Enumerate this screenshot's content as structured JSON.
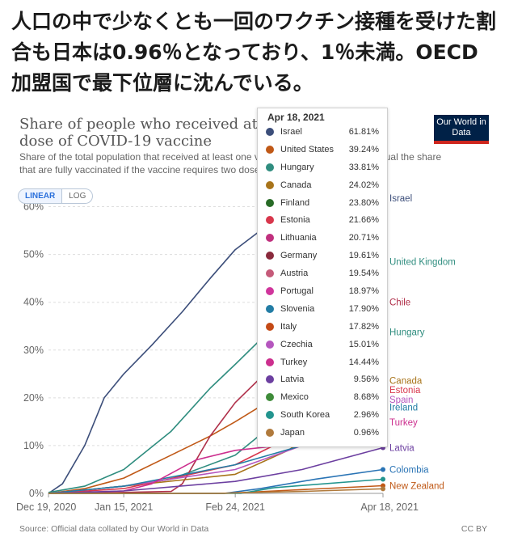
{
  "headline": "人口の中で少なくとも一回のワクチン接種を受けた割合も日本は0.96％となっており、1％未満。OECD加盟国で最下位層に沈んでいる。",
  "logo": "Our World in Data",
  "toggle": {
    "linear": "LINEAR",
    "log": "LOG"
  },
  "footer": {
    "source": "Source: Official data collated by Our World in Data",
    "license": "CC BY"
  },
  "tooltip": {
    "date": "Apr 18, 2021",
    "rows": [
      {
        "name": "Israel",
        "value": "61.81%",
        "color": "#3c4e7a"
      },
      {
        "name": "United States",
        "value": "39.24%",
        "color": "#c05917"
      },
      {
        "name": "Hungary",
        "value": "33.81%",
        "color": "#2f8d7f"
      },
      {
        "name": "Canada",
        "value": "24.02%",
        "color": "#a8741a"
      },
      {
        "name": "Finland",
        "value": "23.80%",
        "color": "#286b26"
      },
      {
        "name": "Estonia",
        "value": "21.66%",
        "color": "#d8374c"
      },
      {
        "name": "Lithuania",
        "value": "20.71%",
        "color": "#c0307e"
      },
      {
        "name": "Germany",
        "value": "19.61%",
        "color": "#8a2a3c"
      },
      {
        "name": "Austria",
        "value": "19.54%",
        "color": "#c55a79"
      },
      {
        "name": "Portugal",
        "value": "18.97%",
        "color": "#d0359c"
      },
      {
        "name": "Slovenia",
        "value": "17.90%",
        "color": "#237da5"
      },
      {
        "name": "Italy",
        "value": "17.82%",
        "color": "#c44a16"
      },
      {
        "name": "Czechia",
        "value": "15.01%",
        "color": "#b556be"
      },
      {
        "name": "Turkey",
        "value": "14.44%",
        "color": "#cc2f8e"
      },
      {
        "name": "Latvia",
        "value": "9.56%",
        "color": "#6c3fa0"
      },
      {
        "name": "Mexico",
        "value": "8.68%",
        "color": "#3f8c3a"
      },
      {
        "name": "South Korea",
        "value": "2.96%",
        "color": "#23958f"
      },
      {
        "name": "Japan",
        "value": "0.96%",
        "color": "#b07a3c"
      }
    ]
  },
  "chart_data": {
    "type": "line",
    "title": "Share of people who received at least one dose of COVID-19 vaccine",
    "subtitle": "Share of the total population that received at least one vaccine dose. This may not equal the share that are fully vaccinated if the vaccine requires two doses.",
    "y_ticks": [
      "0%",
      "10%",
      "20%",
      "30%",
      "40%",
      "50%",
      "60%"
    ],
    "x_ticks": [
      "Dec 19, 2020",
      "Jan 15, 2021",
      "Feb 24, 2021",
      "Apr 18, 2021"
    ],
    "ylim": [
      0,
      65
    ],
    "xlim": [
      "2020-12-19",
      "2021-04-18"
    ],
    "series": [
      {
        "name": "Israel",
        "color": "#3c4e7a",
        "points": [
          [
            "2020-12-19",
            0
          ],
          [
            "2020-12-24",
            2
          ],
          [
            "2021-01-01",
            10
          ],
          [
            "2021-01-08",
            20
          ],
          [
            "2021-01-15",
            25
          ],
          [
            "2021-01-25",
            31
          ],
          [
            "2021-02-05",
            38
          ],
          [
            "2021-02-15",
            45
          ],
          [
            "2021-02-24",
            51
          ],
          [
            "2021-03-05",
            55
          ],
          [
            "2021-03-15",
            58
          ],
          [
            "2021-03-25",
            60
          ],
          [
            "2021-04-05",
            61.2
          ],
          [
            "2021-04-18",
            61.81
          ]
        ]
      },
      {
        "name": "United States",
        "color": "#c05917",
        "points": [
          [
            "2020-12-19",
            0
          ],
          [
            "2021-01-01",
            1
          ],
          [
            "2021-01-15",
            3.2
          ],
          [
            "2021-02-01",
            8
          ],
          [
            "2021-02-15",
            12
          ],
          [
            "2021-02-24",
            15
          ],
          [
            "2021-03-10",
            20
          ],
          [
            "2021-03-25",
            27
          ],
          [
            "2021-04-05",
            33
          ],
          [
            "2021-04-18",
            39.24
          ]
        ]
      },
      {
        "name": "United Kingdom",
        "color": "#2f8d7f",
        "points": [
          [
            "2020-12-19",
            0.2
          ],
          [
            "2021-01-01",
            1.5
          ],
          [
            "2021-01-15",
            5
          ],
          [
            "2021-02-01",
            13
          ],
          [
            "2021-02-15",
            22
          ],
          [
            "2021-02-24",
            27
          ],
          [
            "2021-03-10",
            35
          ],
          [
            "2021-03-25",
            43
          ],
          [
            "2021-04-05",
            46.5
          ],
          [
            "2021-04-18",
            48.5
          ]
        ]
      },
      {
        "name": "Hungary",
        "color": "#2f8d7f",
        "points": [
          [
            "2020-12-19",
            0
          ],
          [
            "2021-01-15",
            1.5
          ],
          [
            "2021-02-01",
            3
          ],
          [
            "2021-02-24",
            8
          ],
          [
            "2021-03-15",
            17
          ],
          [
            "2021-04-01",
            26
          ],
          [
            "2021-04-18",
            33.81
          ]
        ]
      },
      {
        "name": "Chile",
        "color": "#b0304a",
        "points": [
          [
            "2020-12-19",
            0
          ],
          [
            "2021-01-15",
            0.2
          ],
          [
            "2021-02-01",
            0.4
          ],
          [
            "2021-02-05",
            2
          ],
          [
            "2021-02-15",
            12
          ],
          [
            "2021-02-24",
            19
          ],
          [
            "2021-03-10",
            27
          ],
          [
            "2021-03-25",
            34
          ],
          [
            "2021-04-05",
            38
          ],
          [
            "2021-04-18",
            40
          ]
        ]
      },
      {
        "name": "Canada",
        "color": "#a8741a",
        "points": [
          [
            "2020-12-19",
            0
          ],
          [
            "2021-01-15",
            1.5
          ],
          [
            "2021-02-24",
            4
          ],
          [
            "2021-03-15",
            9
          ],
          [
            "2021-04-01",
            16
          ],
          [
            "2021-04-18",
            24.02
          ]
        ]
      },
      {
        "name": "Estonia",
        "color": "#d8374c",
        "points": [
          [
            "2020-12-19",
            0
          ],
          [
            "2021-01-15",
            1
          ],
          [
            "2021-02-24",
            6
          ],
          [
            "2021-03-20",
            13
          ],
          [
            "2021-04-18",
            21.66
          ]
        ]
      },
      {
        "name": "Spain",
        "color": "#b556be",
        "points": [
          [
            "2020-12-19",
            0
          ],
          [
            "2021-01-15",
            1.5
          ],
          [
            "2021-02-24",
            5
          ],
          [
            "2021-03-20",
            10
          ],
          [
            "2021-04-18",
            19.5
          ]
        ]
      },
      {
        "name": "Ireland",
        "color": "#237da5",
        "points": [
          [
            "2020-12-19",
            0
          ],
          [
            "2021-01-15",
            1.5
          ],
          [
            "2021-02-24",
            6
          ],
          [
            "2021-03-20",
            10
          ],
          [
            "2021-04-18",
            18
          ]
        ]
      },
      {
        "name": "Turkey",
        "color": "#cc2f8e",
        "points": [
          [
            "2020-12-19",
            0
          ],
          [
            "2021-01-15",
            0.5
          ],
          [
            "2021-01-25",
            2
          ],
          [
            "2021-02-10",
            7
          ],
          [
            "2021-02-24",
            9
          ],
          [
            "2021-03-20",
            10.5
          ],
          [
            "2021-04-18",
            14.44
          ]
        ]
      },
      {
        "name": "Latvia",
        "color": "#6c3fa0",
        "points": [
          [
            "2020-12-19",
            0
          ],
          [
            "2021-01-15",
            0.5
          ],
          [
            "2021-02-24",
            2.5
          ],
          [
            "2021-03-20",
            5
          ],
          [
            "2021-04-18",
            9.56
          ]
        ]
      },
      {
        "name": "Colombia",
        "color": "#2a74b5",
        "points": [
          [
            "2020-12-19",
            0
          ],
          [
            "2021-02-20",
            0
          ],
          [
            "2021-03-05",
            1
          ],
          [
            "2021-03-25",
            3
          ],
          [
            "2021-04-18",
            5
          ]
        ]
      },
      {
        "name": "New Zealand",
        "color": "#c05917",
        "points": [
          [
            "2020-12-19",
            0
          ],
          [
            "2021-02-20",
            0
          ],
          [
            "2021-03-10",
            0.5
          ],
          [
            "2021-04-18",
            1.6
          ]
        ]
      },
      {
        "name": "South Korea",
        "color": "#23958f",
        "points": [
          [
            "2020-12-19",
            0
          ],
          [
            "2021-02-26",
            0
          ],
          [
            "2021-03-10",
            1.2
          ],
          [
            "2021-04-18",
            2.96
          ]
        ]
      },
      {
        "name": "Japan",
        "color": "#b07a3c",
        "points": [
          [
            "2020-12-19",
            0
          ],
          [
            "2021-02-17",
            0
          ],
          [
            "2021-03-20",
            0.4
          ],
          [
            "2021-04-18",
            0.96
          ]
        ]
      }
    ],
    "end_labels": [
      {
        "text": "Israel",
        "value": 61.81,
        "color": "#3c4e7a"
      },
      {
        "text": "United Kingdom",
        "value": 48.5,
        "color": "#2f8d7f"
      },
      {
        "text": "Chile",
        "value": 40,
        "color": "#b0304a"
      },
      {
        "text": "Hungary",
        "value": 33.81,
        "color": "#2f8d7f"
      },
      {
        "text": "Canada",
        "value": 23.6,
        "color": "#a8741a"
      },
      {
        "text": "Estonia",
        "value": 21.66,
        "color": "#d8374c"
      },
      {
        "text": "Spain",
        "value": 19.6,
        "color": "#b556be"
      },
      {
        "text": "Ireland",
        "value": 18,
        "color": "#237da5"
      },
      {
        "text": "Turkey",
        "value": 14.9,
        "color": "#cc2f8e"
      },
      {
        "text": "Latvia",
        "value": 9.56,
        "color": "#6c3fa0"
      },
      {
        "text": "Colombia",
        "value": 5,
        "color": "#2a74b5"
      },
      {
        "text": "New Zealand",
        "value": 1.6,
        "color": "#c05917"
      }
    ]
  }
}
